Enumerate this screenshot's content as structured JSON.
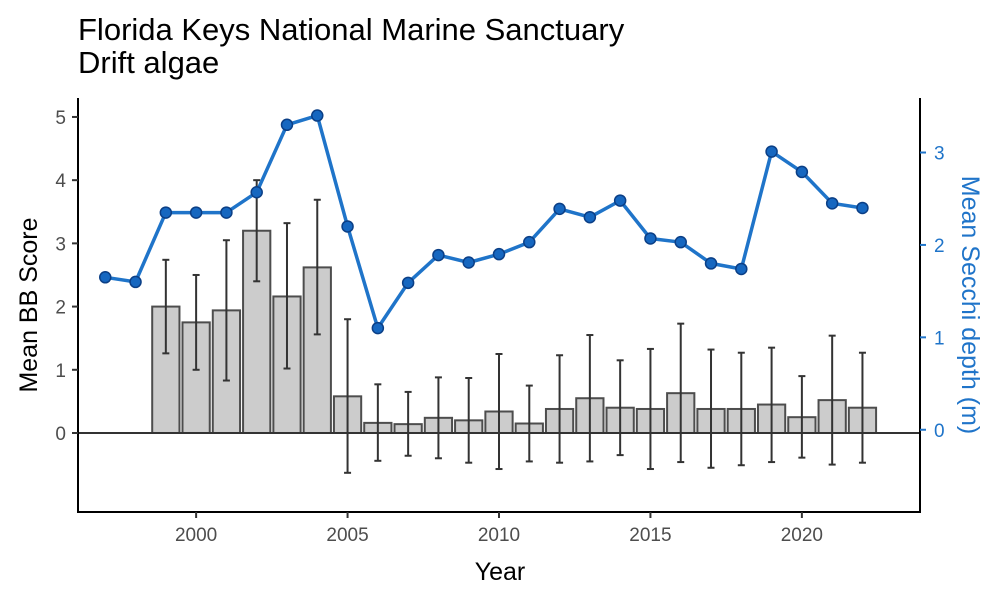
{
  "chart_data": {
    "type": "bar",
    "title": "Florida Keys National Marine Sanctuary",
    "subtitle": "Drift algae",
    "xlabel": "Year",
    "ylabel": "Mean BB Score",
    "y2label": "Mean Secchi depth (m)",
    "xlim": [
      1996.1,
      2023.9
    ],
    "ylim": [
      -1.25,
      5.3
    ],
    "y2lim": [
      -0.89,
      3.59
    ],
    "x_ticks": [
      2000,
      2005,
      2010,
      2015,
      2020
    ],
    "y_ticks": [
      0,
      1,
      2,
      3,
      4,
      5
    ],
    "y2_ticks": [
      0,
      1,
      2,
      3
    ],
    "grid": false,
    "colors": {
      "bar_fill": "#cccccc",
      "bar_stroke": "#4d4d4d",
      "error_bar": "#333333",
      "line": "#1f74c9",
      "point_fill": "#1667c0",
      "point_stroke": "#0b3f86",
      "right_axis_text": "#1f74c9"
    },
    "series": [
      {
        "kind": "bar",
        "axis": "left",
        "x": [
          1999,
          2000,
          2001,
          2002,
          2003,
          2004,
          2005,
          2006,
          2007,
          2008,
          2009,
          2010,
          2011,
          2012,
          2013,
          2014,
          2015,
          2016,
          2017,
          2018,
          2019,
          2020,
          2021,
          2022
        ],
        "values": [
          2.0,
          1.75,
          1.94,
          3.2,
          2.16,
          2.62,
          0.58,
          0.16,
          0.14,
          0.24,
          0.2,
          0.34,
          0.15,
          0.38,
          0.55,
          0.4,
          0.38,
          0.63,
          0.38,
          0.38,
          0.45,
          0.25,
          0.52,
          0.4
        ],
        "error_upper": [
          2.74,
          2.5,
          3.05,
          4.0,
          3.32,
          3.69,
          1.8,
          0.77,
          0.65,
          0.88,
          0.87,
          1.25,
          0.75,
          1.23,
          1.55,
          1.15,
          1.33,
          1.73,
          1.32,
          1.27,
          1.35,
          0.9,
          1.54,
          1.27
        ],
        "error_lower": [
          1.26,
          1.0,
          0.83,
          2.4,
          1.02,
          1.56,
          -0.63,
          -0.44,
          -0.36,
          -0.4,
          -0.47,
          -0.57,
          -0.45,
          -0.47,
          -0.45,
          -0.35,
          -0.57,
          -0.46,
          -0.55,
          -0.51,
          -0.46,
          -0.39,
          -0.5,
          -0.47
        ]
      },
      {
        "kind": "line",
        "axis": "right",
        "x": [
          1997,
          1998,
          1999,
          2000,
          2001,
          2002,
          2003,
          2004,
          2005,
          2006,
          2007,
          2008,
          2009,
          2010,
          2011,
          2012,
          2013,
          2014,
          2015,
          2016,
          2017,
          2018,
          2019,
          2020,
          2021,
          2022
        ],
        "values": [
          1.65,
          1.6,
          2.35,
          2.35,
          2.35,
          2.57,
          3.3,
          3.4,
          2.2,
          1.1,
          1.59,
          1.89,
          1.81,
          1.9,
          2.03,
          2.39,
          2.3,
          2.48,
          2.07,
          2.03,
          1.8,
          1.74,
          3.01,
          2.79,
          2.45,
          2.4
        ]
      }
    ]
  }
}
